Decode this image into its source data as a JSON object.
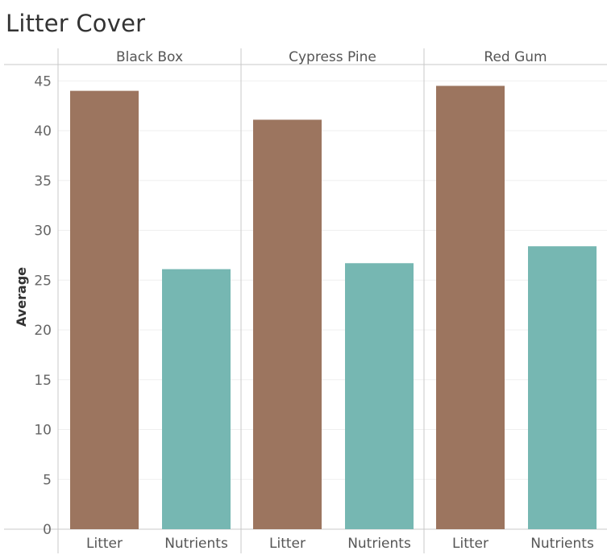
{
  "title": "Litter Cover",
  "chart_data": {
    "type": "bar",
    "title": "Litter Cover",
    "ylabel": "Average",
    "xlabel": "",
    "ylim": [
      0,
      45
    ],
    "yticks": [
      0,
      5,
      10,
      15,
      20,
      25,
      30,
      35,
      40,
      45
    ],
    "grid": "horizontal",
    "panels": [
      "Black Box",
      "Cypress Pine",
      "Red Gum"
    ],
    "categories": [
      "Litter",
      "Nutrients"
    ],
    "colors": {
      "Litter": "#9c755f",
      "Nutrients": "#76b7b2"
    },
    "values": [
      [
        44.0,
        26.1
      ],
      [
        41.1,
        26.7
      ],
      [
        44.5,
        28.4
      ]
    ]
  }
}
